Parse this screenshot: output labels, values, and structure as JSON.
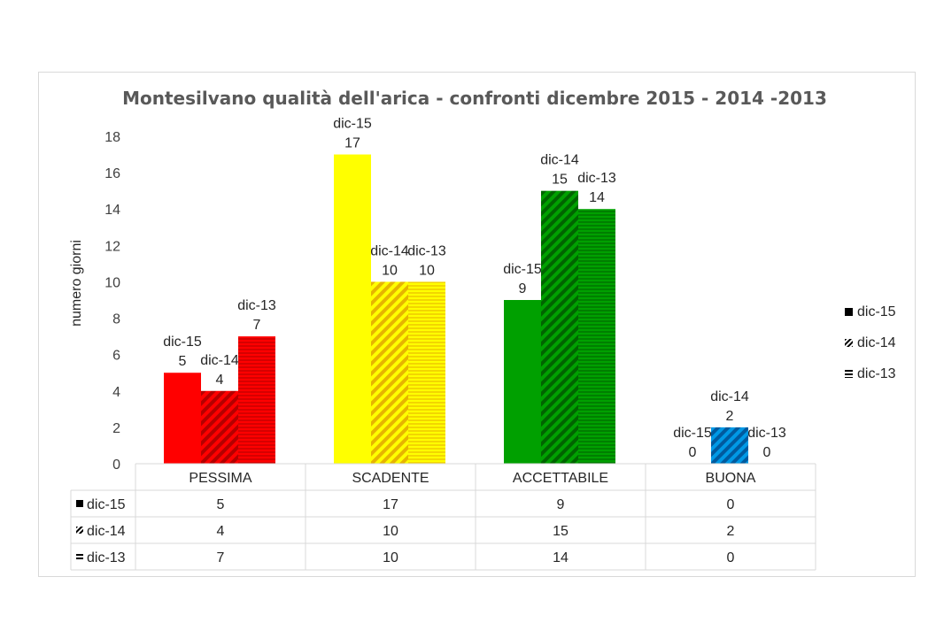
{
  "chart_data": {
    "type": "bar",
    "title": "Montesilvano qualità dell'arica - confronti dicembre 2015 - 2014 -2013",
    "ylabel": "numero giorni",
    "xlabel": "",
    "ylim": [
      0,
      18
    ],
    "yticks": [
      0,
      2,
      4,
      6,
      8,
      10,
      12,
      14,
      16,
      18
    ],
    "grid": false,
    "legend_position": "right",
    "categories": [
      "PESSIMA",
      "SCADENTE",
      "ACCETTABILE",
      "BUONA"
    ],
    "category_colors": [
      "#ff0000",
      "#ffff00",
      "#00a000",
      "#0099e6"
    ],
    "category_dark_colors": [
      "#b40000",
      "#e6b400",
      "#006400",
      "#005a9e"
    ],
    "series": [
      {
        "name": "dic-15",
        "values": [
          5,
          17,
          9,
          0
        ],
        "pattern": "solid"
      },
      {
        "name": "dic-14",
        "values": [
          4,
          10,
          15,
          2
        ],
        "pattern": "diagonal"
      },
      {
        "name": "dic-13",
        "values": [
          7,
          10,
          14,
          0
        ],
        "pattern": "horizontal"
      }
    ],
    "table": {
      "rows": [
        {
          "series": "dic-15",
          "values": [
            "5",
            "17",
            "9",
            "0"
          ]
        },
        {
          "series": "dic-14",
          "values": [
            "4",
            "10",
            "15",
            "2"
          ]
        },
        {
          "series": "dic-13",
          "values": [
            "7",
            "10",
            "14",
            "0"
          ]
        }
      ]
    }
  }
}
